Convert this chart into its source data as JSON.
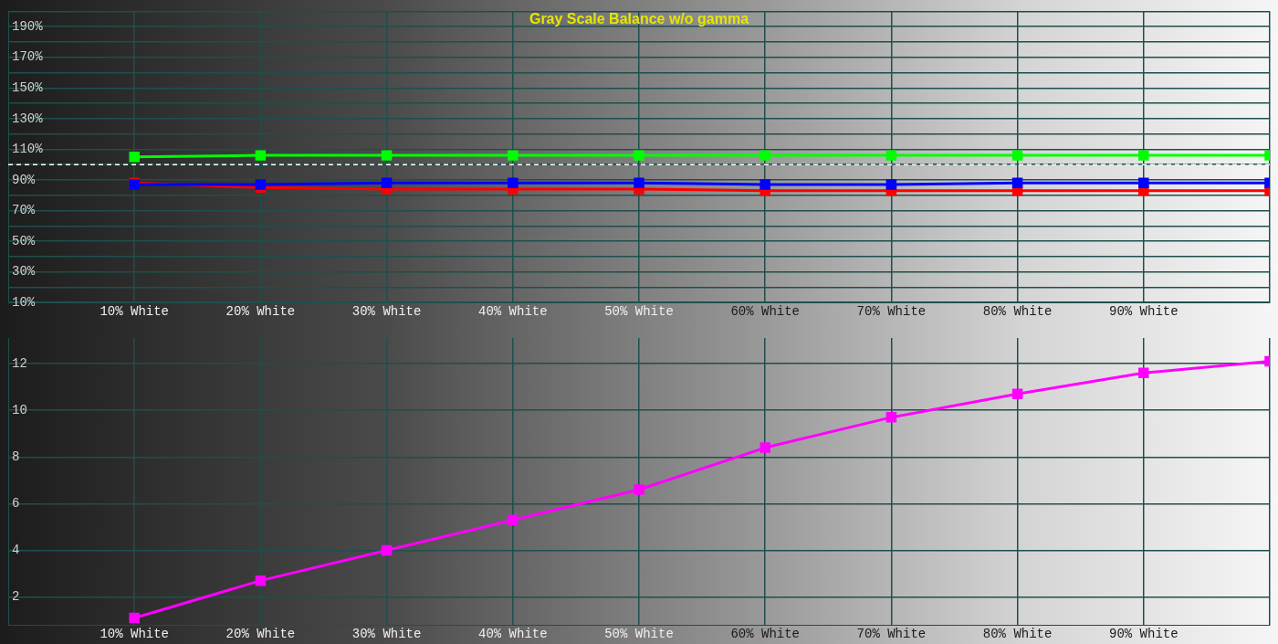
{
  "chart_data": [
    {
      "type": "line",
      "title": "Gray Scale Balance w/o gamma",
      "categories": [
        "10% White",
        "20% White",
        "30% White",
        "40% White",
        "50% White",
        "60% White",
        "70% White",
        "80% White",
        "90% White",
        null
      ],
      "series": [
        {
          "color": "#00ff00",
          "values": [
            105,
            106,
            106,
            106,
            106,
            106,
            106,
            106,
            106,
            106
          ]
        },
        {
          "color": "#ff0000",
          "values": [
            88,
            85,
            84,
            84,
            84,
            83,
            83,
            83,
            83,
            83
          ]
        },
        {
          "color": "#0000ff",
          "values": [
            87,
            87,
            88,
            88,
            88,
            87,
            87,
            88,
            88,
            88
          ]
        }
      ],
      "ylim": [
        10,
        200
      ],
      "yticks": [
        {
          "value": 10,
          "label": "10%"
        },
        {
          "value": 20,
          "label": null
        },
        {
          "value": 30,
          "label": "30%"
        },
        {
          "value": 40,
          "label": null
        },
        {
          "value": 50,
          "label": "50%"
        },
        {
          "value": 60,
          "label": null
        },
        {
          "value": 70,
          "label": "70%"
        },
        {
          "value": 80,
          "label": null
        },
        {
          "value": 90,
          "label": "90%"
        },
        {
          "value": 100,
          "label": null
        },
        {
          "value": 110,
          "label": "110%"
        },
        {
          "value": 120,
          "label": null
        },
        {
          "value": 130,
          "label": "130%"
        },
        {
          "value": 140,
          "label": null
        },
        {
          "value": 150,
          "label": "150%"
        },
        {
          "value": 160,
          "label": null
        },
        {
          "value": 170,
          "label": "170%"
        },
        {
          "value": 180,
          "label": null
        },
        {
          "value": 190,
          "label": "190%"
        },
        {
          "value": 200,
          "label": null
        }
      ],
      "ref_lines": [
        {
          "axis": "y",
          "value": 100,
          "color": "#ffffff",
          "line_style": "dashed"
        }
      ],
      "grid": true,
      "marker": "square"
    },
    {
      "type": "line",
      "categories": [
        "10% White",
        "20% White",
        "30% White",
        "40% White",
        "50% White",
        "60% White",
        "70% White",
        "80% White",
        "90% White",
        null
      ],
      "series": [
        {
          "color": "#ff00ff",
          "values": [
            1.1,
            2.7,
            4.0,
            5.3,
            6.6,
            8.4,
            9.7,
            10.7,
            11.6,
            12.1
          ]
        }
      ],
      "ylim": [
        0.8,
        13.1
      ],
      "yticks": [
        2,
        4,
        6,
        8,
        10,
        12
      ],
      "grid": true,
      "marker": "square"
    }
  ]
}
